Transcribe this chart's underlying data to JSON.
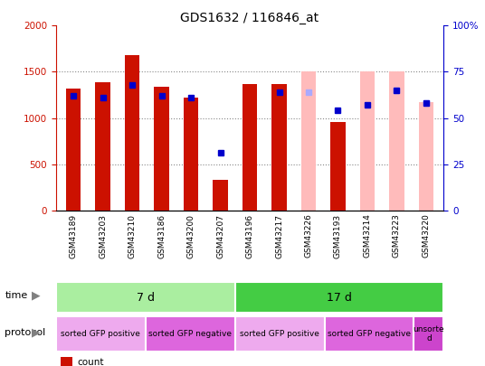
{
  "title": "GDS1632 / 116846_at",
  "samples": [
    "GSM43189",
    "GSM43203",
    "GSM43210",
    "GSM43186",
    "GSM43200",
    "GSM43207",
    "GSM43196",
    "GSM43217",
    "GSM43226",
    "GSM43193",
    "GSM43214",
    "GSM43223",
    "GSM43220"
  ],
  "count_values": [
    1320,
    1390,
    1680,
    1340,
    1220,
    330,
    1370,
    1370,
    null,
    960,
    null,
    null,
    null
  ],
  "rank_values": [
    62,
    61,
    68,
    62,
    61,
    31,
    null,
    64,
    null,
    54,
    57,
    65,
    58
  ],
  "absent_value_bars": [
    null,
    null,
    null,
    null,
    null,
    null,
    null,
    null,
    1500,
    null,
    1500,
    1500,
    1170
  ],
  "absent_rank_bars": [
    null,
    null,
    null,
    null,
    null,
    null,
    null,
    null,
    64,
    null,
    null,
    65,
    58
  ],
  "count_color": "#cc1100",
  "rank_color": "#0000cc",
  "absent_value_color": "#ffbbbb",
  "absent_rank_color": "#aaaaff",
  "ylim_left": [
    0,
    2000
  ],
  "ylim_right": [
    0,
    100
  ],
  "left_yticks": [
    0,
    500,
    1000,
    1500,
    2000
  ],
  "right_yticks": [
    0,
    25,
    50,
    75,
    100
  ],
  "right_yticklabels": [
    "0",
    "25",
    "50",
    "75",
    "100%"
  ],
  "time_groups": [
    {
      "label": "7 d",
      "start": 0,
      "end": 6,
      "color": "#aaeea0"
    },
    {
      "label": "17 d",
      "start": 6,
      "end": 13,
      "color": "#44cc44"
    }
  ],
  "protocol_groups": [
    {
      "label": "sorted GFP positive",
      "start": 0,
      "end": 3,
      "color": "#eeaaee"
    },
    {
      "label": "sorted GFP negative",
      "start": 3,
      "end": 6,
      "color": "#dd66dd"
    },
    {
      "label": "sorted GFP positive",
      "start": 6,
      "end": 9,
      "color": "#eeaaee"
    },
    {
      "label": "sorted GFP negative",
      "start": 9,
      "end": 12,
      "color": "#dd66dd"
    },
    {
      "label": "unsorte\nd",
      "start": 12,
      "end": 13,
      "color": "#cc44cc"
    }
  ],
  "bar_width": 0.5,
  "background_color": "#ffffff",
  "plot_bg_color": "#ffffff",
  "grid_color": "#888888",
  "xticklabel_bg": "#dddddd"
}
